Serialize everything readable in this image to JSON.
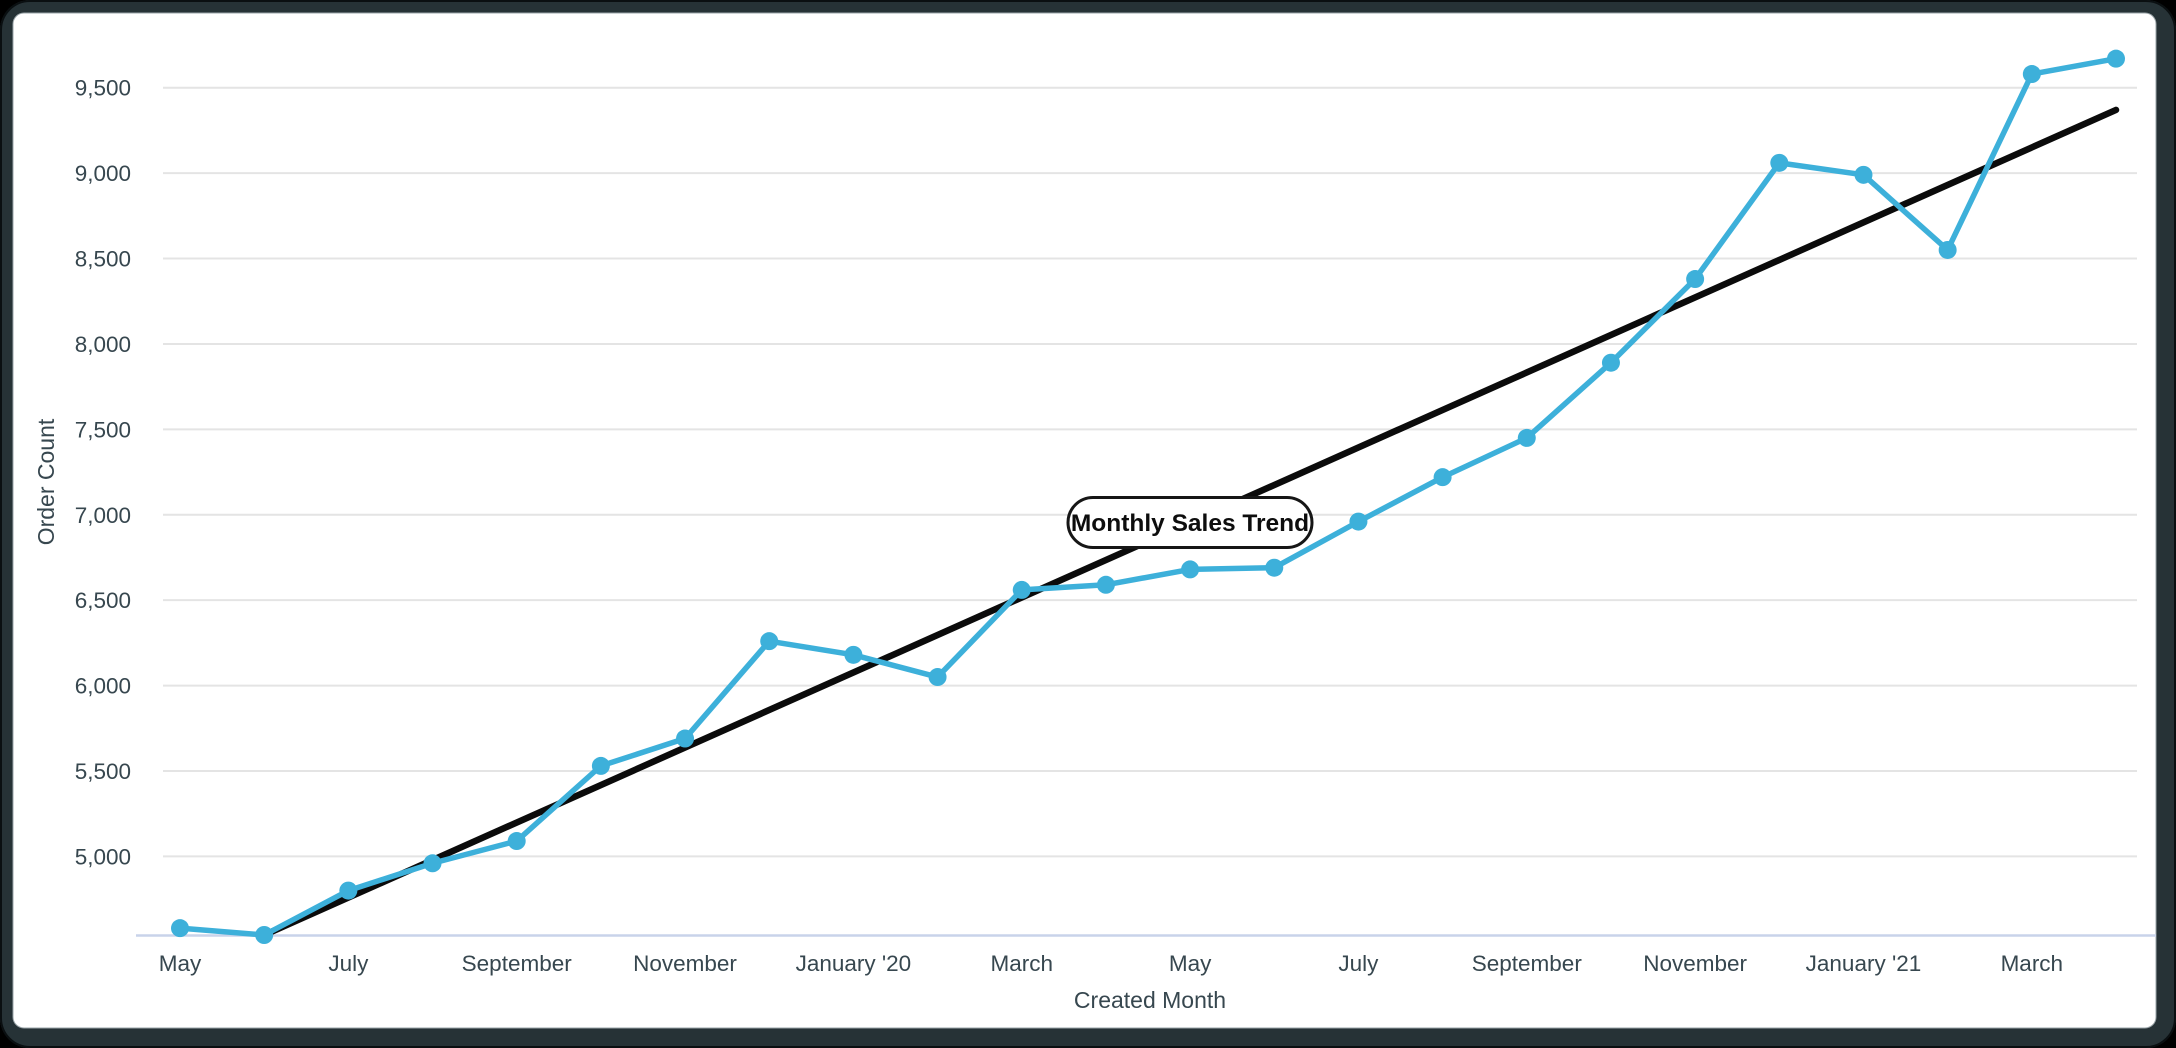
{
  "chart_data": {
    "type": "line",
    "title": "Monthly Sales Trend",
    "xlabel": "Created Month",
    "ylabel": "Order Count",
    "x_tick_labels": [
      "May",
      "July",
      "September",
      "November",
      "January '20",
      "March",
      "May",
      "July",
      "September",
      "November",
      "January '21",
      "March"
    ],
    "x_tick_every": 2,
    "y_ticks": [
      5000,
      5500,
      6000,
      6500,
      7000,
      7500,
      8000,
      8500,
      9000,
      9500
    ],
    "y_tick_labels": [
      "5,000",
      "5,500",
      "6,000",
      "6,500",
      "7,000",
      "7,500",
      "8,000",
      "8,500",
      "9,000",
      "9,500"
    ],
    "ylim": [
      4540,
      9840
    ],
    "num_points": 24,
    "grid": "horizontal-only",
    "legend": "none",
    "series": [
      {
        "name": "Order Count",
        "values": [
          4580,
          4540,
          4800,
          4960,
          5090,
          5530,
          5690,
          6260,
          6180,
          6050,
          6560,
          6590,
          6680,
          6690,
          6960,
          7220,
          7450,
          7890,
          8380,
          9060,
          8990,
          8550,
          9580,
          9670
        ]
      },
      {
        "name": "Linear Trend",
        "trend_start_value": 4320,
        "trend_end_value": 9370
      }
    ],
    "colors": {
      "line": "#3DB0DA",
      "marker": "#3DB0DA",
      "trend": "#0b0b0b",
      "gridline": "#e4e4e4",
      "x_axis_line": "#c9d3ea",
      "tick_text": "#37474f",
      "pill_fill": "#ffffff",
      "pill_border": "#161616",
      "frame": "#263236",
      "panel": "#ffffff"
    }
  }
}
